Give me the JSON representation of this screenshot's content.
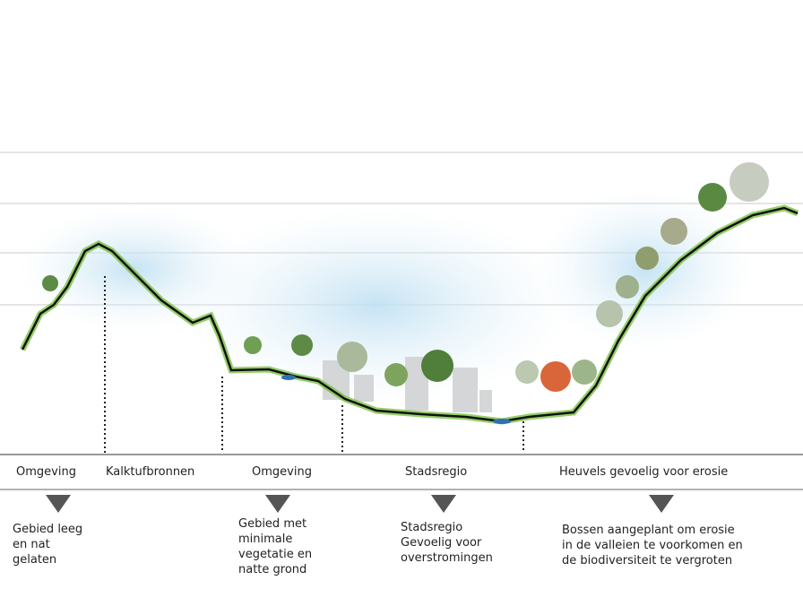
{
  "zones": [
    "Omgeving",
    "Kalktufbronnen",
    "Omgeving",
    "Stadsregio",
    "Heuvels gevoelig voor erosie"
  ],
  "descriptions": [
    {
      "lines": [
        "Gebied leeg",
        "en nat",
        "gelaten"
      ]
    },
    {
      "lines": [
        "Gebied met",
        "minimale",
        "vegetatie en",
        "natte grond"
      ]
    },
    {
      "lines": [
        "Stadsregio",
        "Gevoelig voor",
        "overstromingen"
      ]
    },
    {
      "lines": [
        "Bossen aangeplant om erosie",
        "in de valleien te voorkomen en",
        "de biodiversiteit te vergroten"
      ]
    }
  ]
}
